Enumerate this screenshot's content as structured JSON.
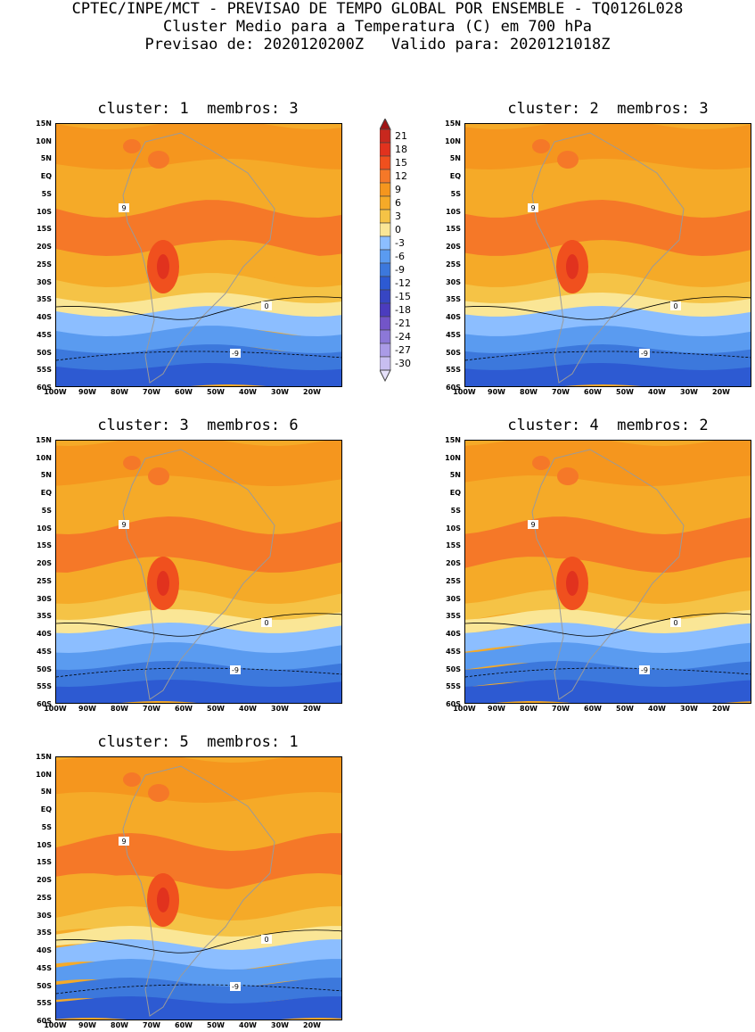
{
  "header": {
    "line1": "CPTEC/INPE/MCT - PREVISAO DE TEMPO GLOBAL POR ENSEMBLE - TQ0126L028",
    "line2": "Cluster Medio para a Temperatura (C) em 700 hPa",
    "line3": "Previsao de: 2020120200Z   Valido para: 2020121018Z"
  },
  "panels": [
    {
      "title": "cluster: 1  membros: 3"
    },
    {
      "title": "cluster: 2  membros: 3"
    },
    {
      "title": "cluster: 3  membros: 6"
    },
    {
      "title": "cluster: 4  membros: 2"
    },
    {
      "title": "cluster: 5  membros: 1"
    }
  ],
  "axes": {
    "lat_labels": [
      "15N",
      "10N",
      "5N",
      "EQ",
      "5S",
      "10S",
      "15S",
      "20S",
      "25S",
      "30S",
      "35S",
      "40S",
      "45S",
      "50S",
      "55S",
      "60S"
    ],
    "lon_labels": [
      "100W",
      "90W",
      "80W",
      "70W",
      "60W",
      "50W",
      "40W",
      "30W",
      "20W"
    ]
  },
  "colorbar": {
    "labels": [
      "21",
      "18",
      "15",
      "12",
      "9",
      "6",
      "3",
      "0",
      "-3",
      "-6",
      "-9",
      "-12",
      "-15",
      "-18",
      "-21",
      "-24",
      "-27",
      "-30"
    ],
    "colors": [
      "#c8281e",
      "#e1321e",
      "#f0501e",
      "#f57828",
      "#f5961e",
      "#f5aa28",
      "#f5c346",
      "#fae696",
      "#8cbeff",
      "#5a9bf0",
      "#3c78dc",
      "#2d5ad2",
      "#3746c3",
      "#4b3cbe",
      "#7355c8",
      "#8c78d7",
      "#aa9be6",
      "#c8bef0"
    ],
    "min_arrow_color": "#e6e1fa",
    "max_arrow_color": "#a01414"
  },
  "contour_labels": {
    "warm": "9",
    "zero": "0",
    "cold": "-9"
  }
}
